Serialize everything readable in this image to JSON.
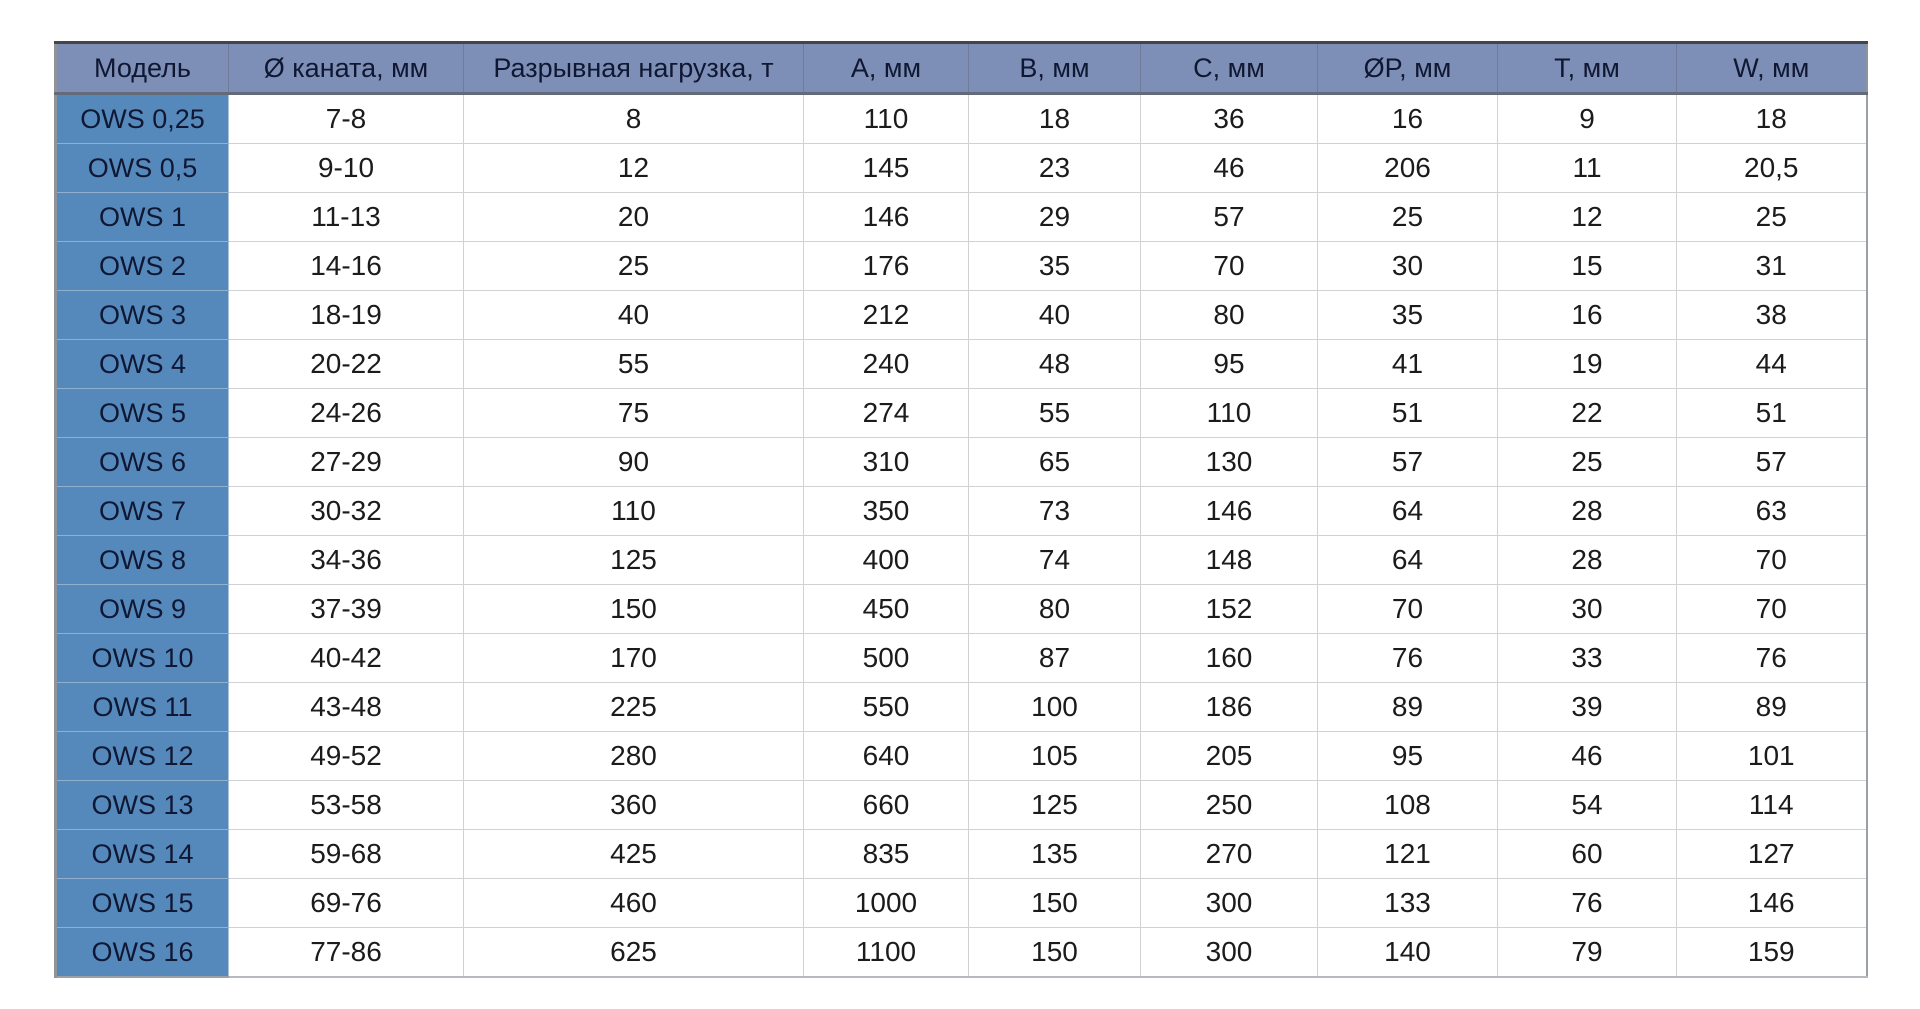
{
  "table": {
    "columns": [
      {
        "key": "model",
        "label": "Модель"
      },
      {
        "key": "rope-diameter",
        "label": "Ø каната, мм"
      },
      {
        "key": "breaking-load",
        "label": "Разрывная нагрузка, т"
      },
      {
        "key": "dim-a",
        "label": "A, мм"
      },
      {
        "key": "dim-b",
        "label": "B, мм"
      },
      {
        "key": "dim-c",
        "label": "C, мм"
      },
      {
        "key": "dim-p",
        "label": "ØP, мм"
      },
      {
        "key": "dim-t",
        "label": "T, мм"
      },
      {
        "key": "dim-w",
        "label": "W, мм"
      }
    ],
    "rows": [
      [
        "OWS 0,25",
        "7-8",
        "8",
        "110",
        "18",
        "36",
        "16",
        "9",
        "18"
      ],
      [
        "OWS 0,5",
        "9-10",
        "12",
        "145",
        "23",
        "46",
        "206",
        "11",
        "20,5"
      ],
      [
        "OWS 1",
        "11-13",
        "20",
        "146",
        "29",
        "57",
        "25",
        "12",
        "25"
      ],
      [
        "OWS 2",
        "14-16",
        "25",
        "176",
        "35",
        "70",
        "30",
        "15",
        "31"
      ],
      [
        "OWS 3",
        "18-19",
        "40",
        "212",
        "40",
        "80",
        "35",
        "16",
        "38"
      ],
      [
        "OWS 4",
        "20-22",
        "55",
        "240",
        "48",
        "95",
        "41",
        "19",
        "44"
      ],
      [
        "OWS 5",
        "24-26",
        "75",
        "274",
        "55",
        "110",
        "51",
        "22",
        "51"
      ],
      [
        "OWS 6",
        "27-29",
        "90",
        "310",
        "65",
        "130",
        "57",
        "25",
        "57"
      ],
      [
        "OWS 7",
        "30-32",
        "110",
        "350",
        "73",
        "146",
        "64",
        "28",
        "63"
      ],
      [
        "OWS 8",
        "34-36",
        "125",
        "400",
        "74",
        "148",
        "64",
        "28",
        "70"
      ],
      [
        "OWS 9",
        "37-39",
        "150",
        "450",
        "80",
        "152",
        "70",
        "30",
        "70"
      ],
      [
        "OWS 10",
        "40-42",
        "170",
        "500",
        "87",
        "160",
        "76",
        "33",
        "76"
      ],
      [
        "OWS 11",
        "43-48",
        "225",
        "550",
        "100",
        "186",
        "89",
        "39",
        "89"
      ],
      [
        "OWS 12",
        "49-52",
        "280",
        "640",
        "105",
        "205",
        "95",
        "46",
        "101"
      ],
      [
        "OWS 13",
        "53-58",
        "360",
        "660",
        "125",
        "250",
        "108",
        "54",
        "114"
      ],
      [
        "OWS 14",
        "59-68",
        "425",
        "835",
        "135",
        "270",
        "121",
        "60",
        "127"
      ],
      [
        "OWS 15",
        "69-76",
        "460",
        "1000",
        "150",
        "300",
        "133",
        "76",
        "146"
      ],
      [
        "OWS 16",
        "77-86",
        "625",
        "1100",
        "150",
        "300",
        "140",
        "79",
        "159"
      ]
    ]
  },
  "chart_data": {
    "type": "table",
    "title": "",
    "columns": [
      "Модель",
      "Ø каната, мм",
      "Разрывная нагрузка, т",
      "A, мм",
      "B, мм",
      "C, мм",
      "ØP, мм",
      "T, мм",
      "W, мм"
    ],
    "rows": [
      [
        "OWS 0,25",
        "7-8",
        "8",
        "110",
        "18",
        "36",
        "16",
        "9",
        "18"
      ],
      [
        "OWS 0,5",
        "9-10",
        "12",
        "145",
        "23",
        "46",
        "206",
        "11",
        "20,5"
      ],
      [
        "OWS 1",
        "11-13",
        "20",
        "146",
        "29",
        "57",
        "25",
        "12",
        "25"
      ],
      [
        "OWS 2",
        "14-16",
        "25",
        "176",
        "35",
        "70",
        "30",
        "15",
        "31"
      ],
      [
        "OWS 3",
        "18-19",
        "40",
        "212",
        "40",
        "80",
        "35",
        "16",
        "38"
      ],
      [
        "OWS 4",
        "20-22",
        "55",
        "240",
        "48",
        "95",
        "41",
        "19",
        "44"
      ],
      [
        "OWS 5",
        "24-26",
        "75",
        "274",
        "55",
        "110",
        "51",
        "22",
        "51"
      ],
      [
        "OWS 6",
        "27-29",
        "90",
        "310",
        "65",
        "130",
        "57",
        "25",
        "57"
      ],
      [
        "OWS 7",
        "30-32",
        "110",
        "350",
        "73",
        "146",
        "64",
        "28",
        "63"
      ],
      [
        "OWS 8",
        "34-36",
        "125",
        "400",
        "74",
        "148",
        "64",
        "28",
        "70"
      ],
      [
        "OWS 9",
        "37-39",
        "150",
        "450",
        "80",
        "152",
        "70",
        "30",
        "70"
      ],
      [
        "OWS 10",
        "40-42",
        "170",
        "500",
        "87",
        "160",
        "76",
        "33",
        "76"
      ],
      [
        "OWS 11",
        "43-48",
        "225",
        "550",
        "100",
        "186",
        "89",
        "39",
        "89"
      ],
      [
        "OWS 12",
        "49-52",
        "280",
        "640",
        "105",
        "205",
        "95",
        "46",
        "101"
      ],
      [
        "OWS 13",
        "53-58",
        "360",
        "660",
        "125",
        "250",
        "108",
        "54",
        "114"
      ],
      [
        "OWS 14",
        "59-68",
        "425",
        "835",
        "135",
        "270",
        "121",
        "60",
        "127"
      ],
      [
        "OWS 15",
        "69-76",
        "460",
        "1000",
        "150",
        "300",
        "133",
        "76",
        "146"
      ],
      [
        "OWS 16",
        "77-86",
        "625",
        "1100",
        "150",
        "300",
        "140",
        "79",
        "159"
      ]
    ]
  },
  "colors": {
    "header_bg": "#7d8fb6",
    "model_column_bg": "#5589bc",
    "header_text": "#101733",
    "data_text": "#1b1b1b",
    "gridline": "#d2d2d2",
    "outer_border": "#8f9499"
  }
}
